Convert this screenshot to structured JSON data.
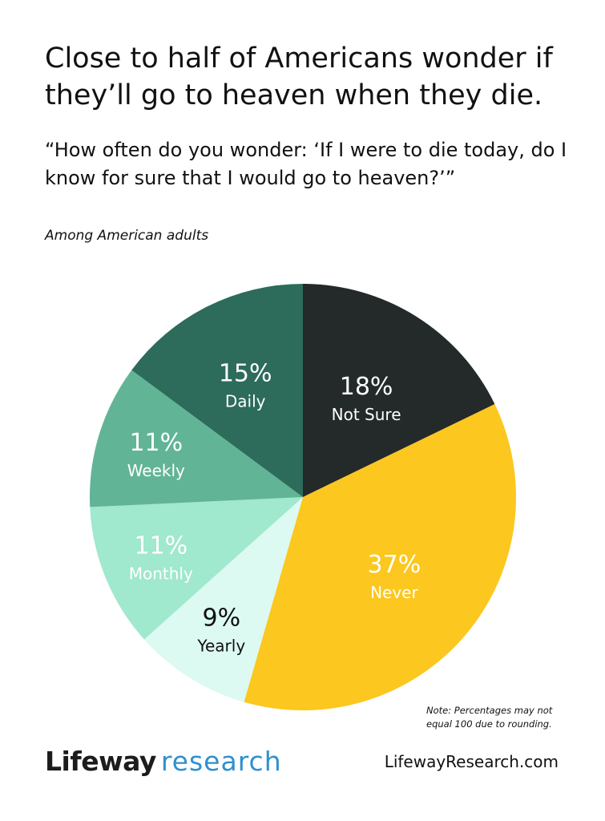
{
  "header": {
    "title": "Close to half of Americans wonder if they’ll go to heaven when they die.",
    "question": "“How often do you wonder: ‘If I were to die today, do I know for sure that I would go to heaven?’”",
    "subtitle": "Among American adults"
  },
  "chart_data": {
    "type": "pie",
    "title": "Close to half of Americans wonder if they’ll go to heaven when they die.",
    "start": "12 o'clock",
    "direction": "clockwise",
    "slices": [
      {
        "label": "Not Sure",
        "value": 18,
        "value_label": "18%",
        "color": "#24292a",
        "text_color": "#ffffff"
      },
      {
        "label": "Never",
        "value": 37,
        "value_label": "37%",
        "color": "#fcc71e",
        "text_color": "#ffffff"
      },
      {
        "label": "Yearly",
        "value": 9,
        "value_label": "9%",
        "color": "#dcfaf1",
        "text_color": "#111111"
      },
      {
        "label": "Monthly",
        "value": 11,
        "value_label": "11%",
        "color": "#a0e8ce",
        "text_color": "#ffffff"
      },
      {
        "label": "Weekly",
        "value": 11,
        "value_label": "11%",
        "color": "#62b497",
        "text_color": "#ffffff"
      },
      {
        "label": "Daily",
        "value": 15,
        "value_label": "15%",
        "color": "#2d6b5b",
        "text_color": "#ffffff"
      }
    ]
  },
  "footer": {
    "note_line1": "Note: Percentages may not",
    "note_line2": "equal 100 due to rounding.",
    "brand_name": "Lifeway",
    "brand_sub": "research",
    "website": "LifewayResearch.com"
  }
}
